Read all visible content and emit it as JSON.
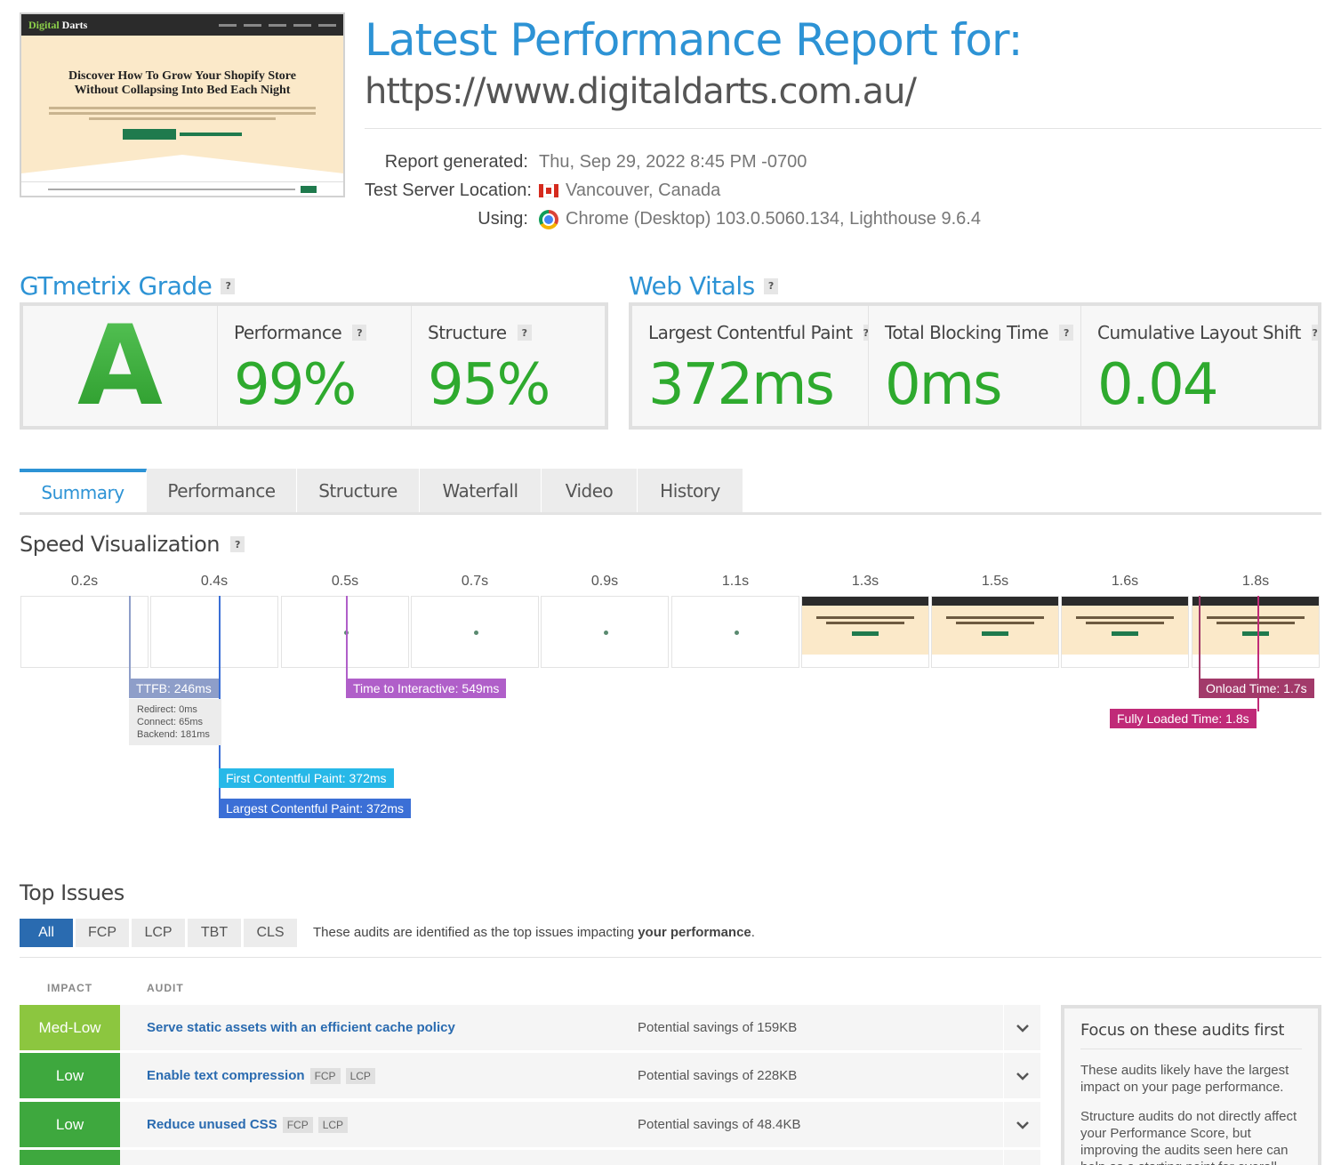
{
  "thumbnail": {
    "logo_a": "Digital",
    "logo_b": " Darts",
    "headline_1": "Discover How To Grow Your Shopify Store",
    "headline_2": "Without Collapsing Into Bed Each Night"
  },
  "header": {
    "title": "Latest Performance Report for:",
    "url": "https://www.digitaldarts.com.au/",
    "meta": {
      "generated_label": "Report generated:",
      "generated_value": "Thu, Sep 29, 2022 8:45 PM -0700",
      "location_label": "Test Server Location:",
      "location_value": "Vancouver, Canada",
      "location_flag": "canada-flag-icon",
      "using_label": "Using:",
      "using_value": "Chrome (Desktop) 103.0.5060.134, Lighthouse 9.6.4",
      "using_icon": "chrome-icon"
    }
  },
  "grade": {
    "title": "GTmetrix Grade",
    "help": "?",
    "letter": "A",
    "performance_label": "Performance",
    "performance_value": "99%",
    "structure_label": "Structure",
    "structure_value": "95%"
  },
  "vitals": {
    "title": "Web Vitals",
    "help": "?",
    "lcp_label": "Largest Contentful Paint",
    "lcp_value": "372ms",
    "tbt_label": "Total Blocking Time",
    "tbt_value": "0ms",
    "cls_label": "Cumulative Layout Shift",
    "cls_value": "0.04"
  },
  "colors": {
    "accent": "#2d93d5",
    "grade_green": "#2eaa2e",
    "ttfb": "#8e9ec9",
    "tti": "#b05fc9",
    "fcp": "#27b8e8",
    "lcp": "#3b6fd6",
    "onload": "#a23a6a",
    "fully_loaded": "#c02a78",
    "impact_medlow": "#8cc63f",
    "impact_low": "#3ea83e"
  },
  "tabs": [
    {
      "label": "Summary",
      "active": true
    },
    {
      "label": "Performance",
      "active": false
    },
    {
      "label": "Structure",
      "active": false
    },
    {
      "label": "Waterfall",
      "active": false
    },
    {
      "label": "Video",
      "active": false
    },
    {
      "label": "History",
      "active": false
    }
  ],
  "speed": {
    "title": "Speed Visualization",
    "help": "?",
    "frames": [
      {
        "time": "0.2s",
        "state": "blank"
      },
      {
        "time": "0.4s",
        "state": "blank"
      },
      {
        "time": "0.5s",
        "state": "dot"
      },
      {
        "time": "0.7s",
        "state": "dot"
      },
      {
        "time": "0.9s",
        "state": "dot"
      },
      {
        "time": "1.1s",
        "state": "dot"
      },
      {
        "time": "1.3s",
        "state": "page"
      },
      {
        "time": "1.5s",
        "state": "page"
      },
      {
        "time": "1.6s",
        "state": "page"
      },
      {
        "time": "1.8s",
        "state": "page"
      }
    ],
    "ttfb": "TTFB: 246ms",
    "ttfb_redirect": "Redirect: 0ms",
    "ttfb_connect": "Connect: 65ms",
    "ttfb_backend": "Backend: 181ms",
    "tti": "Time to Interactive: 549ms",
    "fcp": "First Contentful Paint: 372ms",
    "lcp": "Largest Contentful Paint: 372ms",
    "onload": "Onload Time: 1.7s",
    "fully_loaded": "Fully Loaded Time: 1.8s"
  },
  "issues": {
    "title": "Top Issues",
    "filters": [
      {
        "label": "All",
        "active": true
      },
      {
        "label": "FCP",
        "active": false
      },
      {
        "label": "LCP",
        "active": false
      },
      {
        "label": "TBT",
        "active": false
      },
      {
        "label": "CLS",
        "active": false
      }
    ],
    "note_pre": "These audits are identified as the top issues impacting ",
    "note_bold": "your performance",
    "note_post": ".",
    "col_impact": "IMPACT",
    "col_audit": "AUDIT",
    "rows": [
      {
        "impact": "Med-Low",
        "audit": "Serve static assets with an efficient cache policy",
        "tags": [],
        "savings": "Potential savings of 159KB"
      },
      {
        "impact": "Low",
        "audit": "Enable text compression",
        "tags": [
          "FCP",
          "LCP"
        ],
        "savings": "Potential savings of 228KB"
      },
      {
        "impact": "Low",
        "audit": "Reduce unused CSS",
        "tags": [
          "FCP",
          "LCP"
        ],
        "savings": "Potential savings of 48.4KB"
      }
    ],
    "focus": {
      "title": "Focus on these audits first",
      "p1": "These audits likely have the largest impact on your page performance.",
      "p2": "Structure audits do not directly affect your Performance Score, but improving the audits seen here can help as a starting point for overall"
    }
  }
}
